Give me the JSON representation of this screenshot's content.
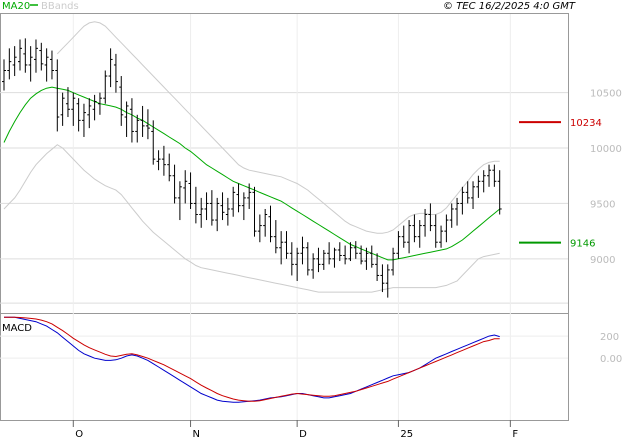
{
  "header": {
    "legend_ma": "MA20",
    "legend_bb": "BBands",
    "copyright": "© TEC 16/2/2025 4:0 GMT",
    "ma_color": "#00aa00",
    "bb_color": "#cccccc"
  },
  "chart_data": [
    {
      "type": "ohlc",
      "y_ticks": [
        {
          "v": 9000,
          "label": "9000"
        },
        {
          "v": 9500,
          "label": "9500"
        },
        {
          "v": 10000,
          "label": "10000"
        },
        {
          "v": 10500,
          "label": "10500"
        }
      ],
      "ylim": [
        8520,
        11210
      ],
      "x_labels": [
        {
          "label": "O",
          "i": 13
        },
        {
          "label": "N",
          "i": 35
        },
        {
          "label": "D",
          "i": 55
        },
        {
          "label": "25",
          "i": 74
        },
        {
          "label": "F",
          "i": 95
        }
      ],
      "levels": [
        {
          "value": 10234,
          "label": "10234",
          "color": "#cc0000"
        },
        {
          "value": 9146,
          "label": "9146",
          "color": "#009900"
        }
      ],
      "ohlc": [
        [
          10600,
          10800,
          10520,
          10700
        ],
        [
          10700,
          10900,
          10620,
          10780
        ],
        [
          10750,
          10920,
          10650,
          10820
        ],
        [
          10780,
          10980,
          10700,
          10900
        ],
        [
          10850,
          10990,
          10680,
          10750
        ],
        [
          10750,
          10920,
          10600,
          10820
        ],
        [
          10800,
          10980,
          10680,
          10900
        ],
        [
          10880,
          10950,
          10700,
          10760
        ],
        [
          10750,
          10900,
          10600,
          10820
        ],
        [
          10800,
          10880,
          10620,
          10700
        ],
        [
          10700,
          10800,
          10150,
          10280
        ],
        [
          10300,
          10500,
          10200,
          10450
        ],
        [
          10400,
          10550,
          10280,
          10350
        ],
        [
          10350,
          10500,
          10200,
          10450
        ],
        [
          10400,
          10450,
          10150,
          10250
        ],
        [
          10250,
          10400,
          10100,
          10320
        ],
        [
          10300,
          10450,
          10180,
          10380
        ],
        [
          10350,
          10480,
          10250,
          10420
        ],
        [
          10400,
          10500,
          10300,
          10450
        ],
        [
          10450,
          10700,
          10400,
          10650
        ],
        [
          10650,
          10900,
          10550,
          10800
        ],
        [
          10750,
          10850,
          10500,
          10600
        ],
        [
          10550,
          10650,
          10200,
          10300
        ],
        [
          10280,
          10420,
          10100,
          10380
        ],
        [
          10350,
          10450,
          10050,
          10150
        ],
        [
          10150,
          10300,
          10050,
          10250
        ],
        [
          10250,
          10380,
          10100,
          10200
        ],
        [
          10200,
          10350,
          10080,
          10180
        ],
        [
          10150,
          10250,
          9850,
          9900
        ],
        [
          9880,
          9980,
          9800,
          9900
        ],
        [
          9900,
          10020,
          9750,
          9850
        ],
        [
          9850,
          9950,
          9700,
          9750
        ],
        [
          9750,
          9850,
          9500,
          9550
        ],
        [
          9550,
          9700,
          9350,
          9650
        ],
        [
          9640,
          9800,
          9500,
          9700
        ],
        [
          9680,
          9780,
          9450,
          9500
        ],
        [
          9500,
          9650,
          9320,
          9400
        ],
        [
          9400,
          9550,
          9280,
          9450
        ],
        [
          9450,
          9600,
          9350,
          9500
        ],
        [
          9500,
          9620,
          9300,
          9350
        ],
        [
          9350,
          9550,
          9250,
          9500
        ],
        [
          9480,
          9600,
          9350,
          9420
        ],
        [
          9400,
          9550,
          9300,
          9450
        ],
        [
          9450,
          9650,
          9380,
          9600
        ],
        [
          9580,
          9680,
          9420,
          9480
        ],
        [
          9480,
          9600,
          9350,
          9550
        ],
        [
          9550,
          9680,
          9450,
          9600
        ],
        [
          9600,
          9650,
          9200,
          9250
        ],
        [
          9250,
          9400,
          9150,
          9300
        ],
        [
          9300,
          9450,
          9200,
          9400
        ],
        [
          9380,
          9480,
          9150,
          9200
        ],
        [
          9200,
          9350,
          9050,
          9100
        ],
        [
          9100,
          9250,
          8950,
          9150
        ],
        [
          9150,
          9250,
          9000,
          9050
        ],
        [
          9050,
          9150,
          8850,
          8950
        ],
        [
          8950,
          9100,
          8800,
          9050
        ],
        [
          9050,
          9200,
          8950,
          9100
        ],
        [
          9100,
          9150,
          8850,
          8900
        ],
        [
          8900,
          9050,
          8820,
          9000
        ],
        [
          9000,
          9100,
          8880,
          8950
        ],
        [
          8950,
          9080,
          8900,
          9050
        ],
        [
          9050,
          9150,
          8950,
          9000
        ],
        [
          9000,
          9100,
          8920,
          9080
        ],
        [
          9080,
          9150,
          8980,
          9030
        ],
        [
          9030,
          9120,
          8950,
          9000
        ],
        [
          9000,
          9150,
          8980,
          9100
        ],
        [
          9100,
          9160,
          9000,
          9050
        ],
        [
          9050,
          9120,
          8950,
          8980
        ],
        [
          8980,
          9100,
          8900,
          9050
        ],
        [
          9050,
          9120,
          8920,
          8950
        ],
        [
          8950,
          9050,
          8800,
          8850
        ],
        [
          8850,
          8950,
          8700,
          8780
        ],
        [
          8780,
          8950,
          8650,
          8900
        ],
        [
          8900,
          9100,
          8850,
          9050
        ],
        [
          9050,
          9250,
          9000,
          9200
        ],
        [
          9200,
          9300,
          9100,
          9150
        ],
        [
          9150,
          9350,
          9050,
          9300
        ],
        [
          9300,
          9400,
          9150,
          9200
        ],
        [
          9200,
          9350,
          9100,
          9300
        ],
        [
          9300,
          9450,
          9200,
          9400
        ],
        [
          9400,
          9500,
          9250,
          9300
        ],
        [
          9300,
          9400,
          9100,
          9150
        ],
        [
          9150,
          9300,
          9100,
          9250
        ],
        [
          9250,
          9400,
          9150,
          9350
        ],
        [
          9350,
          9500,
          9280,
          9450
        ],
        [
          9450,
          9550,
          9300,
          9500
        ],
        [
          9500,
          9650,
          9400,
          9600
        ],
        [
          9600,
          9700,
          9500,
          9550
        ],
        [
          9550,
          9700,
          9450,
          9650
        ],
        [
          9650,
          9750,
          9550,
          9700
        ],
        [
          9700,
          9800,
          9600,
          9750
        ],
        [
          9750,
          9850,
          9650,
          9800
        ],
        [
          9800,
          9850,
          9650,
          9700
        ],
        [
          9700,
          9800,
          9400,
          9450
        ]
      ],
      "ma20": [
        10050,
        10150,
        10240,
        10320,
        10390,
        10450,
        10490,
        10520,
        10540,
        10550,
        10540,
        10530,
        10520,
        10500,
        10480,
        10460,
        10440,
        10420,
        10400,
        10390,
        10380,
        10370,
        10350,
        10320,
        10300,
        10270,
        10250,
        10220,
        10190,
        10160,
        10130,
        10100,
        10070,
        10040,
        10000,
        9970,
        9930,
        9890,
        9850,
        9820,
        9790,
        9760,
        9730,
        9700,
        9680,
        9660,
        9640,
        9620,
        9600,
        9580,
        9560,
        9540,
        9520,
        9490,
        9460,
        9430,
        9400,
        9370,
        9340,
        9310,
        9280,
        9250,
        9220,
        9190,
        9160,
        9130,
        9110,
        9090,
        9070,
        9050,
        9030,
        9010,
        8990,
        8990,
        9000,
        9010,
        9020,
        9030,
        9040,
        9050,
        9060,
        9070,
        9080,
        9090,
        9110,
        9140,
        9170,
        9210,
        9250,
        9290,
        9330,
        9370,
        9410,
        9450
      ],
      "bb_upper": [
        null,
        null,
        null,
        null,
        null,
        null,
        null,
        null,
        null,
        null,
        10850,
        10900,
        10950,
        11000,
        11050,
        11100,
        11130,
        11140,
        11130,
        11100,
        11050,
        11000,
        10950,
        10900,
        10850,
        10800,
        10750,
        10700,
        10650,
        10600,
        10550,
        10500,
        10450,
        10400,
        10350,
        10300,
        10250,
        10200,
        10150,
        10100,
        10050,
        10000,
        9950,
        9900,
        9850,
        9820,
        9800,
        9790,
        9780,
        9770,
        9760,
        9750,
        9740,
        9720,
        9700,
        9680,
        9650,
        9620,
        9580,
        9540,
        9500,
        9460,
        9420,
        9380,
        9340,
        9310,
        9290,
        9270,
        9250,
        9240,
        9230,
        9230,
        9240,
        9260,
        9300,
        9340,
        9380,
        9400,
        9410,
        9410,
        9400,
        9400,
        9420,
        9460,
        9520,
        9580,
        9640,
        9700,
        9760,
        9810,
        9850,
        9870,
        9880,
        9880
      ],
      "bb_lower": [
        9450,
        9500,
        9550,
        9620,
        9700,
        9780,
        9850,
        9900,
        9950,
        9990,
        10030,
        10000,
        9950,
        9900,
        9850,
        9800,
        9760,
        9720,
        9690,
        9660,
        9640,
        9620,
        9580,
        9520,
        9460,
        9400,
        9340,
        9290,
        9240,
        9200,
        9160,
        9120,
        9080,
        9040,
        9000,
        8970,
        8940,
        8920,
        8910,
        8900,
        8890,
        8880,
        8870,
        8860,
        8850,
        8840,
        8830,
        8820,
        8810,
        8800,
        8790,
        8780,
        8770,
        8760,
        8750,
        8740,
        8730,
        8720,
        8710,
        8700,
        8700,
        8700,
        8700,
        8700,
        8700,
        8700,
        8700,
        8700,
        8700,
        8700,
        8710,
        8720,
        8730,
        8740,
        8740,
        8740,
        8740,
        8740,
        8740,
        8740,
        8740,
        8740,
        8750,
        8760,
        8780,
        8800,
        8850,
        8900,
        8950,
        9000,
        9020,
        9030,
        9040,
        9050
      ]
    },
    {
      "type": "line",
      "title": "MACD",
      "y_ticks": [
        {
          "v": 200,
          "label": "200"
        },
        {
          "v": 0,
          "label": "0.00"
        }
      ],
      "ylim": [
        -560,
        400
      ],
      "series": [
        {
          "color": "#0000cc",
          "values": [
            370,
            370,
            370,
            360,
            350,
            340,
            330,
            310,
            290,
            260,
            230,
            190,
            150,
            110,
            70,
            40,
            20,
            0,
            -10,
            -20,
            -20,
            -15,
            0,
            20,
            30,
            20,
            0,
            -20,
            -50,
            -80,
            -110,
            -140,
            -170,
            -200,
            -230,
            -260,
            -290,
            -320,
            -340,
            -360,
            -380,
            -390,
            -395,
            -400,
            -400,
            -395,
            -390,
            -385,
            -380,
            -370,
            -360,
            -355,
            -350,
            -340,
            -330,
            -320,
            -320,
            -330,
            -340,
            -350,
            -360,
            -360,
            -350,
            -340,
            -330,
            -320,
            -300,
            -280,
            -260,
            -240,
            -220,
            -200,
            -180,
            -160,
            -150,
            -140,
            -130,
            -110,
            -90,
            -60,
            -30,
            0,
            20,
            40,
            60,
            80,
            100,
            120,
            140,
            160,
            180,
            200,
            210,
            195
          ]
        },
        {
          "color": "#cc0000",
          "values": [
            370,
            370,
            370,
            368,
            365,
            360,
            355,
            345,
            330,
            310,
            280,
            250,
            215,
            180,
            150,
            120,
            95,
            75,
            55,
            35,
            20,
            15,
            25,
            35,
            40,
            30,
            15,
            0,
            -20,
            -40,
            -60,
            -85,
            -110,
            -135,
            -160,
            -185,
            -215,
            -245,
            -270,
            -295,
            -320,
            -340,
            -355,
            -370,
            -380,
            -385,
            -390,
            -390,
            -385,
            -375,
            -365,
            -355,
            -345,
            -335,
            -325,
            -320,
            -325,
            -330,
            -335,
            -340,
            -345,
            -345,
            -340,
            -330,
            -320,
            -310,
            -300,
            -285,
            -270,
            -255,
            -240,
            -225,
            -210,
            -190,
            -170,
            -150,
            -130,
            -110,
            -90,
            -70,
            -50,
            -30,
            -10,
            10,
            30,
            50,
            70,
            90,
            110,
            130,
            150,
            160,
            175,
            175
          ]
        }
      ]
    }
  ]
}
